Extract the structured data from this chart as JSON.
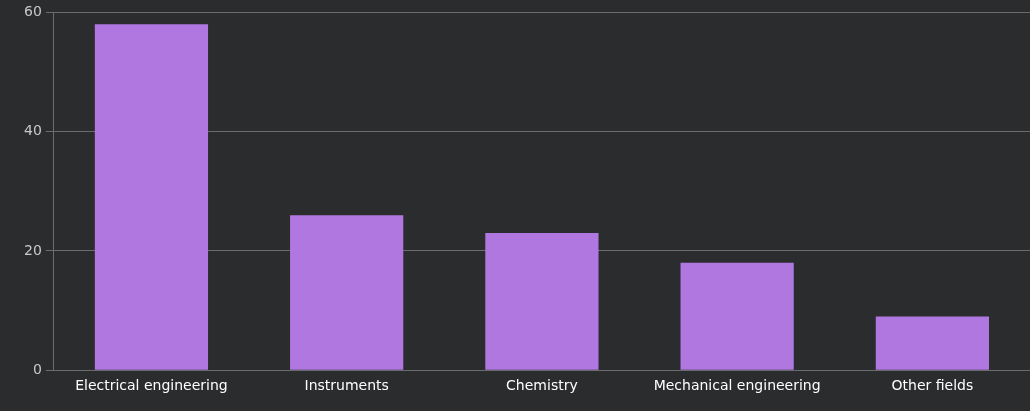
{
  "chart_data": {
    "type": "bar",
    "categories": [
      "Electrical engineering",
      "Instruments",
      "Chemistry",
      "Mechanical engineering",
      "Other fields"
    ],
    "values": [
      58,
      26,
      23,
      18,
      9
    ],
    "color": "#b077e0",
    "ylim": [
      0,
      60
    ],
    "yticks": [
      0,
      20,
      40,
      60
    ],
    "grid": "y",
    "legend": false
  }
}
